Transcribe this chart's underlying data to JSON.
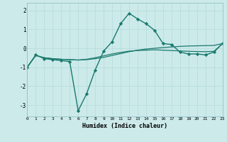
{
  "xlabel": "Humidex (Indice chaleur)",
  "background_color": "#cceaea",
  "grid_color": "#aad4d4",
  "line_color": "#1a7a6e",
  "x_values": [
    0,
    1,
    2,
    3,
    4,
    5,
    6,
    7,
    8,
    9,
    10,
    11,
    12,
    13,
    14,
    15,
    16,
    17,
    18,
    19,
    20,
    21,
    22,
    23
  ],
  "curve1_y": [
    -1.0,
    -0.35,
    -0.55,
    -0.6,
    -0.65,
    -0.7,
    -3.3,
    -2.4,
    -1.15,
    -0.15,
    0.35,
    1.3,
    1.85,
    1.55,
    1.3,
    0.95,
    0.25,
    0.2,
    -0.2,
    -0.3,
    -0.3,
    -0.35,
    -0.2,
    0.25
  ],
  "curve2_y": [
    -1.0,
    -0.38,
    -0.5,
    -0.55,
    -0.58,
    -0.6,
    -0.62,
    -0.6,
    -0.55,
    -0.48,
    -0.38,
    -0.28,
    -0.18,
    -0.1,
    -0.04,
    0.0,
    0.04,
    0.07,
    0.1,
    0.12,
    0.13,
    0.14,
    0.15,
    0.25
  ],
  "curve3_y": [
    -1.0,
    -0.38,
    -0.5,
    -0.55,
    -0.58,
    -0.6,
    -0.62,
    -0.58,
    -0.5,
    -0.4,
    -0.3,
    -0.22,
    -0.15,
    -0.12,
    -0.1,
    -0.08,
    -0.1,
    -0.12,
    -0.14,
    -0.16,
    -0.17,
    -0.18,
    -0.16,
    0.25
  ],
  "xlim": [
    0,
    23
  ],
  "ylim": [
    -3.6,
    2.4
  ],
  "yticks": [
    -3,
    -2,
    -1,
    0,
    1,
    2
  ],
  "xticks": [
    0,
    1,
    2,
    3,
    4,
    5,
    6,
    7,
    8,
    9,
    10,
    11,
    12,
    13,
    14,
    15,
    16,
    17,
    18,
    19,
    20,
    21,
    22,
    23
  ]
}
